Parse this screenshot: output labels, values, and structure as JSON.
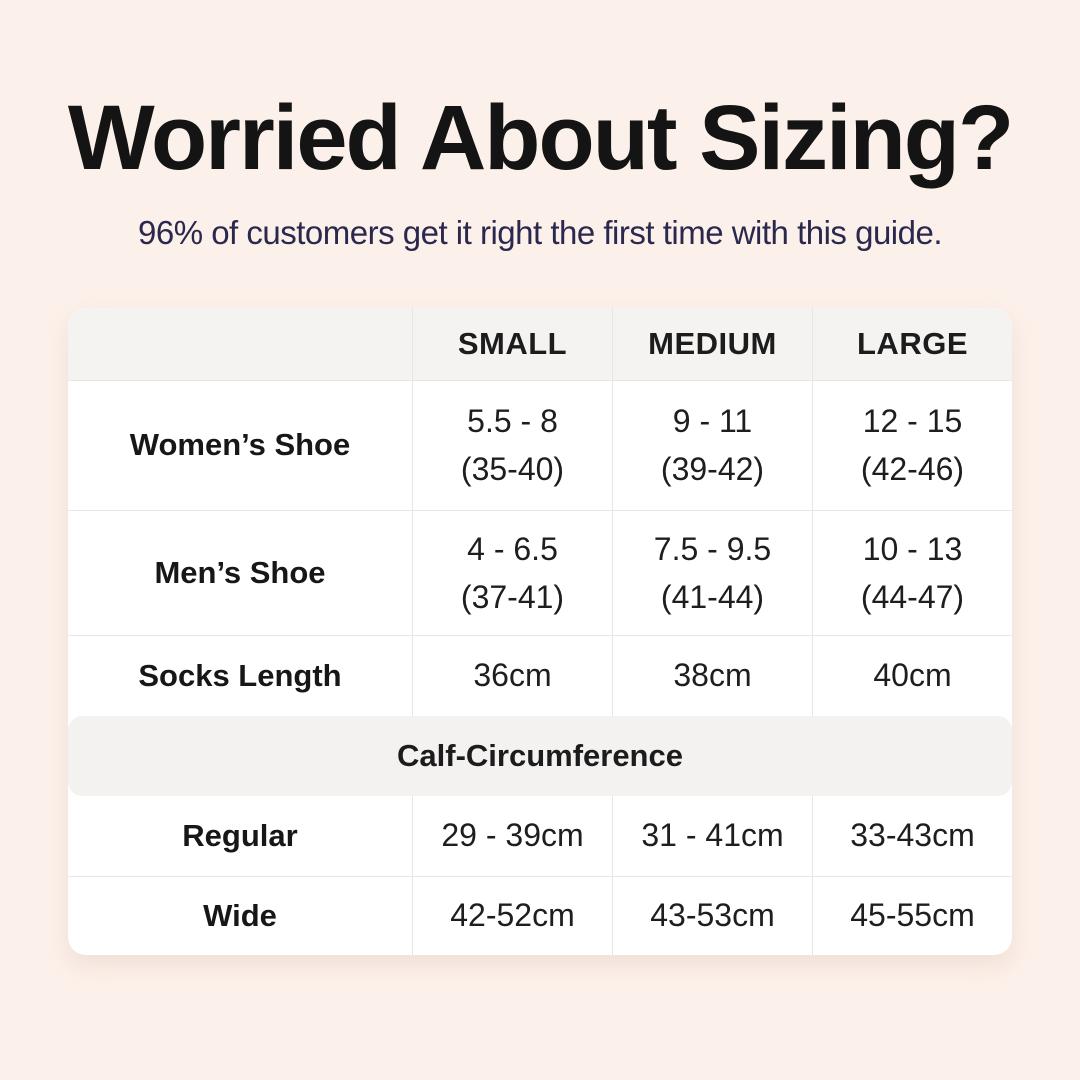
{
  "colors": {
    "background": "#fcf0ea",
    "table_background": "#ffffff",
    "header_row_background": "#f4f3f2",
    "section_band_background": "#f3f2f1",
    "divider": "#e8e6e4",
    "title_text": "#141414",
    "subtitle_text": "#2b284e",
    "body_text": "#1e1e1e"
  },
  "header": {
    "title": "Worried About Sizing?",
    "subtitle": "96% of customers get it right the first time with this guide."
  },
  "table": {
    "column_headers": [
      "SMALL",
      "MEDIUM",
      "LARGE"
    ],
    "shoe_rows": [
      {
        "label": "Women’s Shoe",
        "small": [
          "5.5 - 8",
          "(35-40)"
        ],
        "medium": [
          "9 - 11",
          "(39-42)"
        ],
        "large": [
          "12 - 15",
          "(42-46)"
        ]
      },
      {
        "label": "Men’s Shoe",
        "small": [
          "4 - 6.5",
          "(37-41)"
        ],
        "medium": [
          "7.5 - 9.5",
          "(41-44)"
        ],
        "large": [
          "10 - 13",
          "(44-47)"
        ]
      }
    ],
    "socks_row": {
      "label": "Socks Length",
      "small": "36cm",
      "medium": "38cm",
      "large": "40cm"
    },
    "section_header": "Calf-Circumference",
    "calf_rows": [
      {
        "label": "Regular",
        "small": "29 - 39cm",
        "medium": "31 - 41cm",
        "large": "33-43cm"
      },
      {
        "label": "Wide",
        "small": "42-52cm",
        "medium": "43-53cm",
        "large": "45-55cm"
      }
    ]
  },
  "chart_data": {
    "type": "table",
    "title": "Worried About Sizing?",
    "subtitle": "96% of customers get it right the first time with this guide.",
    "columns": [
      "",
      "SMALL",
      "MEDIUM",
      "LARGE"
    ],
    "rows": [
      [
        "Women’s Shoe",
        "5.5 - 8 (35-40)",
        "9 - 11 (39-42)",
        "12 - 15 (42-46)"
      ],
      [
        "Men’s Shoe",
        "4 - 6.5 (37-41)",
        "7.5 - 9.5 (41-44)",
        "10 - 13 (44-47)"
      ],
      [
        "Socks Length",
        "36cm",
        "38cm",
        "40cm"
      ],
      [
        "Calf-Circumference",
        "",
        "",
        ""
      ],
      [
        "Regular",
        "29 - 39cm",
        "31 - 41cm",
        "33-43cm"
      ],
      [
        "Wide",
        "42-52cm",
        "43-53cm",
        "45-55cm"
      ]
    ],
    "layout_hints": {
      "section_row_index": 3,
      "section_spans_all_columns": true,
      "header_row_shaded": true
    }
  }
}
